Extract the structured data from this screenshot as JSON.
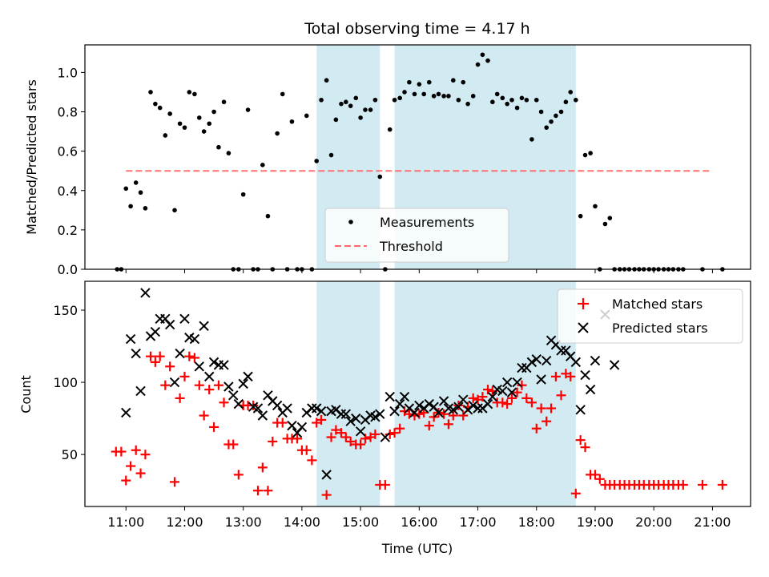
{
  "chart_data": [
    {
      "type": "scatter",
      "title": "Total observing time = 4.17 h",
      "ylabel": "Matched/Predicted stars",
      "xlabel": "",
      "xlim": [
        10.3,
        21.65
      ],
      "ylim": [
        0,
        1.14
      ],
      "yticks": [
        0.0,
        0.2,
        0.4,
        0.6,
        0.8,
        1.0
      ],
      "ytick_labels": [
        "0.0",
        "0.2",
        "0.4",
        "0.6",
        "0.8",
        "1.0"
      ],
      "xticks": [
        11,
        12,
        13,
        14,
        15,
        16,
        17,
        18,
        19,
        20,
        21
      ],
      "shaded_intervals": [
        [
          14.25,
          15.33
        ],
        [
          15.58,
          18.67
        ]
      ],
      "shade_color": "#add8e6",
      "legend_position": "lower center",
      "threshold": {
        "name": "Threshold",
        "value": 0.5,
        "x_range": [
          11.0,
          21.0
        ],
        "color": "#ff6666"
      },
      "series": [
        {
          "name": "Measurements",
          "color": "#000000",
          "marker": "dot",
          "x": [
            10.85,
            10.92,
            11.0,
            11.08,
            11.17,
            11.25,
            11.33,
            11.42,
            11.5,
            11.58,
            11.67,
            11.75,
            11.83,
            11.92,
            12.0,
            12.08,
            12.17,
            12.25,
            12.33,
            12.42,
            12.5,
            12.58,
            12.67,
            12.75,
            12.83,
            12.92,
            13.0,
            13.08,
            13.17,
            13.25,
            13.33,
            13.42,
            13.5,
            13.58,
            13.67,
            13.75,
            13.83,
            13.92,
            14.0,
            14.08,
            14.17,
            14.25,
            14.33,
            14.42,
            14.5,
            14.58,
            14.67,
            14.75,
            14.83,
            14.92,
            15.0,
            15.08,
            15.17,
            15.25,
            15.33,
            15.42,
            15.5,
            15.58,
            15.67,
            15.75,
            15.83,
            15.92,
            16.0,
            16.08,
            16.17,
            16.25,
            16.33,
            16.42,
            16.5,
            16.58,
            16.67,
            16.75,
            16.83,
            16.92,
            17.0,
            17.08,
            17.17,
            17.25,
            17.33,
            17.42,
            17.5,
            17.58,
            17.67,
            17.75,
            17.83,
            17.92,
            18.0,
            18.08,
            18.17,
            18.25,
            18.33,
            18.42,
            18.5,
            18.58,
            18.67,
            18.75,
            18.83,
            18.92,
            19.0,
            19.08,
            19.17,
            19.25,
            19.33,
            19.42,
            19.5,
            19.58,
            19.67,
            19.75,
            19.83,
            19.92,
            20.0,
            20.08,
            20.17,
            20.25,
            20.33,
            20.42,
            20.5,
            20.83,
            21.17
          ],
          "y": [
            0.0,
            0.0,
            0.41,
            0.32,
            0.44,
            0.39,
            0.31,
            0.9,
            0.84,
            0.82,
            0.68,
            0.79,
            0.3,
            0.74,
            0.72,
            0.9,
            0.89,
            0.77,
            0.7,
            0.74,
            0.8,
            0.62,
            0.85,
            0.59,
            0.0,
            0.0,
            0.38,
            0.81,
            0.0,
            0.0,
            0.53,
            0.27,
            0.0,
            0.69,
            0.89,
            0.0,
            0.75,
            0.0,
            0.0,
            0.78,
            0.0,
            0.55,
            0.86,
            0.96,
            0.58,
            0.76,
            0.84,
            0.85,
            0.83,
            0.87,
            0.77,
            0.81,
            0.81,
            0.86,
            0.47,
            0.0,
            0.71,
            0.86,
            0.87,
            0.9,
            0.95,
            0.89,
            0.94,
            0.89,
            0.95,
            0.88,
            0.89,
            0.88,
            0.88,
            0.96,
            0.86,
            0.95,
            0.84,
            0.88,
            1.04,
            1.09,
            1.06,
            0.85,
            0.89,
            0.87,
            0.84,
            0.86,
            0.82,
            0.87,
            0.86,
            0.66,
            0.86,
            0.8,
            0.72,
            0.75,
            0.78,
            0.8,
            0.85,
            0.9,
            0.86,
            0.27,
            0.58,
            0.59,
            0.32,
            0.0,
            0.23,
            0.26,
            0.0,
            0.0,
            0.0,
            0.0,
            0.0,
            0.0,
            0.0,
            0.0,
            0.0,
            0.0,
            0.0,
            0.0,
            0.0,
            0.0,
            0.0,
            0.0,
            0.0
          ]
        }
      ]
    },
    {
      "type": "scatter",
      "title": "",
      "ylabel": "Count",
      "xlabel": "Time (UTC)",
      "xlim": [
        10.3,
        21.65
      ],
      "ylim": [
        14,
        170
      ],
      "yticks": [
        50,
        100,
        150
      ],
      "ytick_labels": [
        "50",
        "100",
        "150"
      ],
      "xticks": [
        11,
        12,
        13,
        14,
        15,
        16,
        17,
        18,
        19,
        20,
        21
      ],
      "xtick_labels": [
        "11:00",
        "12:00",
        "13:00",
        "14:00",
        "15:00",
        "16:00",
        "17:00",
        "18:00",
        "19:00",
        "20:00",
        "21:00"
      ],
      "shaded_intervals": [
        [
          14.25,
          15.33
        ],
        [
          15.58,
          18.67
        ]
      ],
      "shade_color": "#add8e6",
      "legend_position": "upper right",
      "series": [
        {
          "name": "Matched stars",
          "color": "#ff0000",
          "marker": "plus",
          "x": [
            10.83,
            10.92,
            11.0,
            11.08,
            11.17,
            11.25,
            11.33,
            11.42,
            11.5,
            11.58,
            11.67,
            11.75,
            11.83,
            11.92,
            12.0,
            12.08,
            12.17,
            12.25,
            12.33,
            12.42,
            12.5,
            12.58,
            12.67,
            12.75,
            12.83,
            12.92,
            13.0,
            13.08,
            13.17,
            13.25,
            13.33,
            13.42,
            13.5,
            13.58,
            13.67,
            13.75,
            13.83,
            13.92,
            14.0,
            14.08,
            14.17,
            14.25,
            14.33,
            14.42,
            14.5,
            14.58,
            14.67,
            14.75,
            14.83,
            14.92,
            15.0,
            15.08,
            15.17,
            15.25,
            15.33,
            15.42,
            15.5,
            15.58,
            15.67,
            15.75,
            15.83,
            15.92,
            16.0,
            16.08,
            16.17,
            16.25,
            16.33,
            16.42,
            16.5,
            16.58,
            16.67,
            16.75,
            16.83,
            16.92,
            17.0,
            17.08,
            17.17,
            17.25,
            17.33,
            17.42,
            17.5,
            17.58,
            17.67,
            17.75,
            17.83,
            17.92,
            18.0,
            18.08,
            18.17,
            18.25,
            18.33,
            18.42,
            18.5,
            18.58,
            18.67,
            18.75,
            18.83,
            18.92,
            19.0,
            19.08,
            19.17,
            19.25,
            19.33,
            19.42,
            19.5,
            19.58,
            19.67,
            19.75,
            19.83,
            19.92,
            20.0,
            20.08,
            20.17,
            20.25,
            20.33,
            20.42,
            20.5,
            20.83,
            21.17
          ],
          "y": [
            52,
            52,
            32,
            42,
            53,
            37,
            50,
            118,
            114,
            118,
            98,
            111,
            31,
            89,
            104,
            118,
            117,
            98,
            77,
            95,
            69,
            98,
            86,
            57,
            57,
            36,
            84,
            84,
            84,
            25,
            41,
            25,
            59,
            72,
            72,
            61,
            61,
            61,
            53,
            53,
            46,
            72,
            74,
            22,
            62,
            67,
            65,
            62,
            59,
            57,
            57,
            61,
            62,
            64,
            29,
            29,
            64,
            65,
            68,
            80,
            78,
            77,
            78,
            79,
            70,
            76,
            79,
            78,
            71,
            77,
            84,
            77,
            83,
            89,
            88,
            90,
            95,
            94,
            86,
            86,
            85,
            89,
            93,
            98,
            89,
            86,
            68,
            82,
            73,
            82,
            104,
            91,
            106,
            104,
            23,
            60,
            55,
            36,
            36,
            33,
            29,
            29,
            29,
            29,
            29,
            29,
            29,
            29,
            29,
            29,
            29,
            29,
            29,
            29,
            29,
            29,
            29,
            29,
            29
          ]
        },
        {
          "name": "Predicted stars",
          "color": "#000000",
          "marker": "x",
          "x": [
            11.0,
            11.08,
            11.17,
            11.25,
            11.33,
            11.42,
            11.5,
            11.58,
            11.67,
            11.75,
            11.83,
            11.92,
            12.0,
            12.08,
            12.17,
            12.25,
            12.33,
            12.42,
            12.5,
            12.58,
            12.67,
            12.75,
            12.83,
            12.92,
            13.0,
            13.08,
            13.17,
            13.25,
            13.33,
            13.42,
            13.5,
            13.58,
            13.67,
            13.75,
            13.83,
            13.92,
            14.0,
            14.08,
            14.17,
            14.25,
            14.33,
            14.42,
            14.5,
            14.58,
            14.67,
            14.75,
            14.83,
            14.92,
            15.0,
            15.08,
            15.17,
            15.25,
            15.33,
            15.42,
            15.5,
            15.58,
            15.67,
            15.75,
            15.83,
            15.92,
            16.0,
            16.08,
            16.17,
            16.25,
            16.33,
            16.42,
            16.5,
            16.58,
            16.67,
            16.75,
            16.83,
            16.92,
            17.0,
            17.08,
            17.17,
            17.25,
            17.33,
            17.42,
            17.5,
            17.58,
            17.67,
            17.75,
            17.83,
            17.92,
            18.0,
            18.08,
            18.17,
            18.25,
            18.33,
            18.42,
            18.5,
            18.58,
            18.67,
            18.75,
            18.83,
            18.92,
            19.0,
            19.17,
            19.33
          ],
          "y": [
            79,
            130,
            120,
            94,
            162,
            132,
            135,
            144,
            144,
            140,
            100,
            120,
            144,
            131,
            130,
            111,
            139,
            104,
            114,
            112,
            112,
            97,
            91,
            85,
            99,
            104,
            83,
            82,
            77,
            91,
            87,
            84,
            79,
            82,
            70,
            65,
            69,
            79,
            82,
            82,
            80,
            36,
            80,
            81,
            78,
            78,
            73,
            75,
            66,
            74,
            77,
            76,
            78,
            62,
            90,
            80,
            85,
            90,
            82,
            79,
            84,
            82,
            85,
            83,
            79,
            87,
            82,
            81,
            83,
            88,
            81,
            84,
            82,
            82,
            85,
            90,
            95,
            94,
            100,
            93,
            100,
            110,
            110,
            114,
            116,
            102,
            115,
            129,
            126,
            122,
            122,
            118,
            114,
            81,
            105,
            95,
            115,
            147,
            112
          ]
        }
      ]
    }
  ]
}
